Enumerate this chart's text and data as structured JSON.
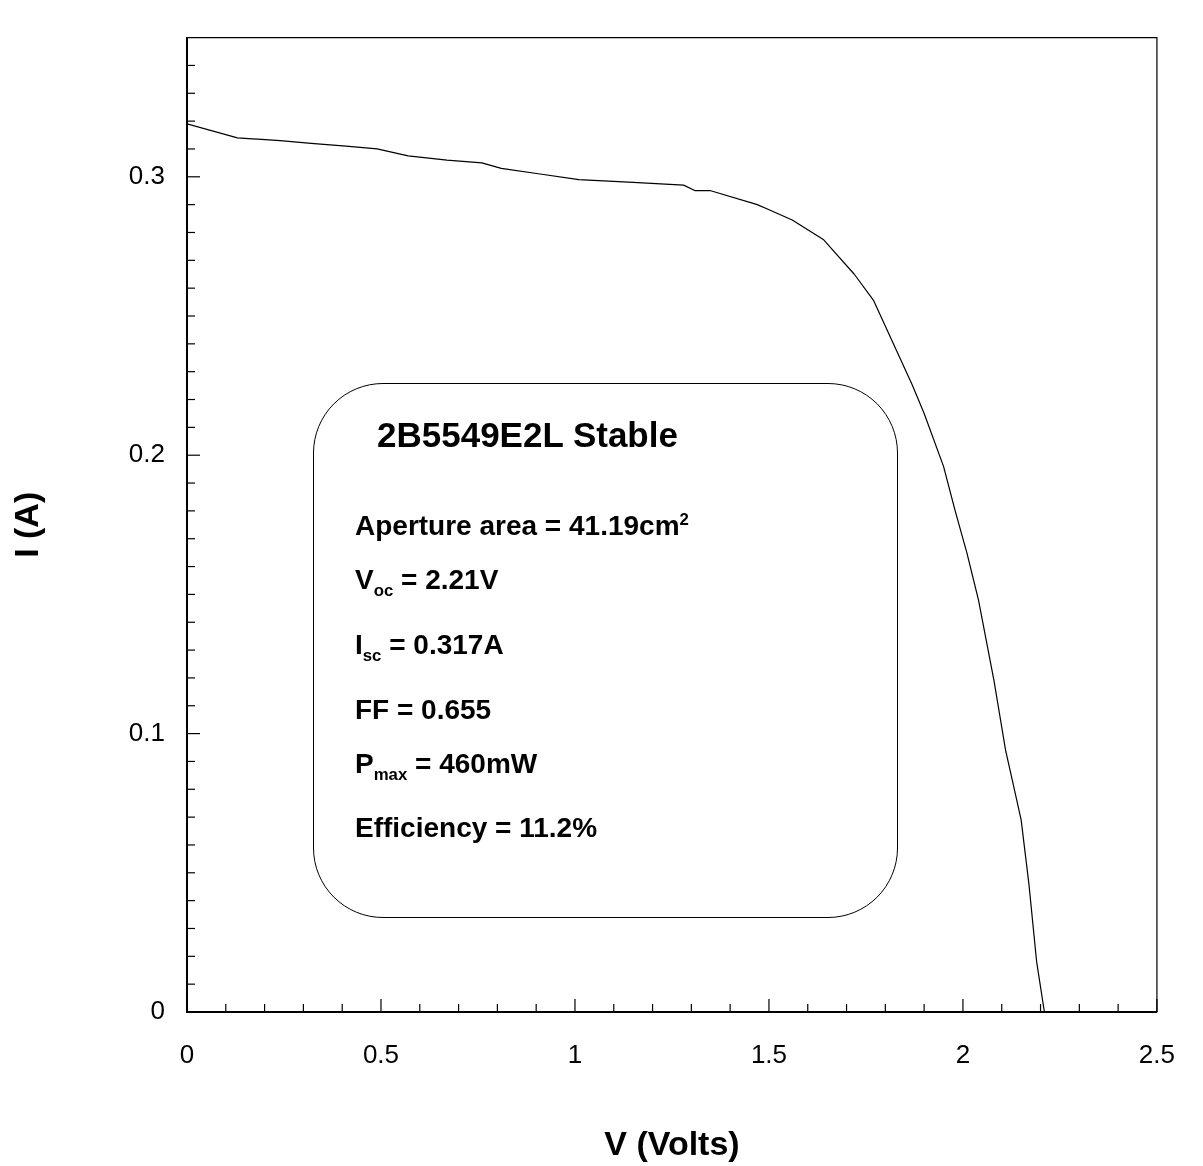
{
  "chart_data": {
    "type": "line",
    "xlabel": "V (Volts)",
    "ylabel": "I (A)",
    "xlim": [
      0,
      2.5
    ],
    "ylim": [
      0,
      0.35
    ],
    "xticks": [
      0,
      {
        "value": 0.1,
        "label": null
      },
      {
        "value": 0.2,
        "label": null
      },
      {
        "value": 0.3,
        "label": null
      },
      {
        "value": 0.4,
        "label": null
      },
      0.5,
      {
        "value": 0.6,
        "label": null
      },
      {
        "value": 0.7,
        "label": null
      },
      {
        "value": 0.8,
        "label": null
      },
      {
        "value": 0.9,
        "label": null
      },
      1,
      {
        "value": 1.1,
        "label": null
      },
      {
        "value": 1.2,
        "label": null
      },
      {
        "value": 1.3,
        "label": null
      },
      {
        "value": 1.4,
        "label": null
      },
      1.5,
      {
        "value": 1.6,
        "label": null
      },
      {
        "value": 1.7,
        "label": null
      },
      {
        "value": 1.8,
        "label": null
      },
      {
        "value": 1.9,
        "label": null
      },
      2,
      {
        "value": 2.1,
        "label": null
      },
      {
        "value": 2.2,
        "label": null
      },
      {
        "value": 2.3,
        "label": null
      },
      {
        "value": 2.4,
        "label": null
      },
      2.5
    ],
    "yticks": [
      0,
      {
        "value": 0.01,
        "label": null
      },
      {
        "value": 0.02,
        "label": null
      },
      {
        "value": 0.03,
        "label": null
      },
      {
        "value": 0.04,
        "label": null
      },
      {
        "value": 0.05,
        "label": null
      },
      {
        "value": 0.06,
        "label": null
      },
      {
        "value": 0.07,
        "label": null
      },
      {
        "value": 0.08,
        "label": null
      },
      {
        "value": 0.09,
        "label": null
      },
      0.1,
      {
        "value": 0.11,
        "label": null
      },
      {
        "value": 0.12,
        "label": null
      },
      {
        "value": 0.13,
        "label": null
      },
      {
        "value": 0.14,
        "label": null
      },
      {
        "value": 0.15,
        "label": null
      },
      {
        "value": 0.16,
        "label": null
      },
      {
        "value": 0.17,
        "label": null
      },
      {
        "value": 0.18,
        "label": null
      },
      {
        "value": 0.19,
        "label": null
      },
      0.2,
      {
        "value": 0.21,
        "label": null
      },
      {
        "value": 0.22,
        "label": null
      },
      {
        "value": 0.23,
        "label": null
      },
      {
        "value": 0.24,
        "label": null
      },
      {
        "value": 0.25,
        "label": null
      },
      {
        "value": 0.26,
        "label": null
      },
      {
        "value": 0.27,
        "label": null
      },
      {
        "value": 0.28,
        "label": null
      },
      {
        "value": 0.29,
        "label": null
      },
      0.3,
      {
        "value": 0.31,
        "label": null
      },
      {
        "value": 0.32,
        "label": null
      },
      {
        "value": 0.33,
        "label": null
      },
      {
        "value": 0.34,
        "label": null
      }
    ],
    "grid": false,
    "legend": false,
    "marker": "none",
    "line_style": "solid",
    "series": [
      {
        "color": "#000000",
        "x": [
          0,
          0.13,
          0.24,
          0.32,
          0.41,
          0.49,
          0.57,
          0.67,
          0.76,
          0.81,
          0.91,
          1.01,
          1.15,
          1.28,
          1.31,
          1.35,
          1.47,
          1.56,
          1.64,
          1.72,
          1.77,
          1.87,
          1.9,
          1.95,
          1.98,
          2.01,
          2.04,
          2.08,
          2.11,
          2.15,
          2.17,
          2.19,
          2.21
        ],
        "values": [
          0.319,
          0.314,
          0.313,
          0.312,
          0.311,
          0.31,
          0.3075,
          0.306,
          0.305,
          0.303,
          0.301,
          0.299,
          0.298,
          0.297,
          0.295,
          0.295,
          0.29,
          0.2845,
          0.2775,
          0.265,
          0.2555,
          0.225,
          0.215,
          0.196,
          0.18,
          0.165,
          0.148,
          0.119,
          0.094,
          0.069,
          0.046,
          0.018,
          0
        ]
      }
    ],
    "annotations": [
      "2B5549E2L Stable",
      "Aperture area = 41.19cm$^{2}$",
      "V$_{oc}$ = 2.21V",
      "I$_{sc}$ = 0.317A",
      "FF = 0.655",
      "P$_{max}$ = 460mW",
      "Efficiency = 11.2%"
    ]
  }
}
